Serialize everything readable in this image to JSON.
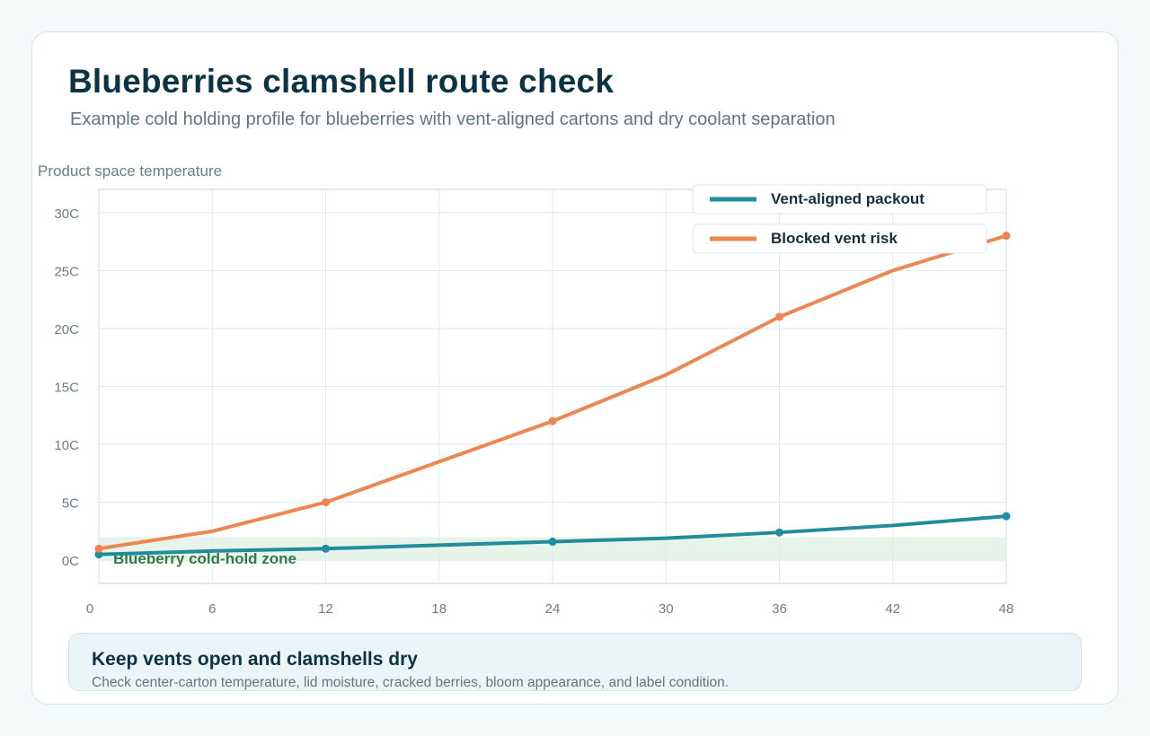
{
  "header": {
    "title": "Blueberries clamshell route check",
    "subtitle": "Example cold holding profile for blueberries with vent-aligned cartons and dry coolant separation"
  },
  "chart_data": {
    "type": "line",
    "ylabel": "Product space temperature",
    "xlabel": "",
    "x": [
      0,
      6,
      12,
      18,
      24,
      30,
      36,
      42,
      48
    ],
    "xticks": [
      "0",
      "6",
      "12",
      "18",
      "24",
      "30",
      "36",
      "42",
      "48"
    ],
    "yticks": [
      "0C",
      "5C",
      "10C",
      "15C",
      "20C",
      "25C",
      "30C"
    ],
    "ytick_values": [
      0,
      5,
      10,
      15,
      20,
      25,
      30
    ],
    "xlim": [
      0,
      48
    ],
    "ylim": [
      -2,
      32
    ],
    "grid": true,
    "legend_position": "top-right",
    "band": {
      "label": "Blueberry cold-hold zone",
      "y0": 0,
      "y1": 2,
      "color": "#e6f4ea",
      "label_color": "#2f7a44"
    },
    "series": [
      {
        "name": "Vent-aligned packout",
        "color": "#238c9c",
        "values": [
          0.5,
          0.8,
          1.0,
          1.3,
          1.6,
          1.9,
          2.4,
          3.0,
          3.8
        ],
        "markers": [
          0,
          12,
          24,
          36,
          48
        ]
      },
      {
        "name": "Blocked vent risk",
        "color": "#ee8651",
        "values": [
          1.0,
          2.5,
          5.0,
          8.5,
          12.0,
          16.0,
          21.0,
          25.0,
          28.0
        ],
        "markers": [
          0,
          12,
          24,
          36,
          48
        ]
      }
    ]
  },
  "note": {
    "title": "Keep vents open and clamshells dry",
    "body": "Check center-carton temperature, lid moisture, cracked berries, bloom appearance, and label condition."
  }
}
